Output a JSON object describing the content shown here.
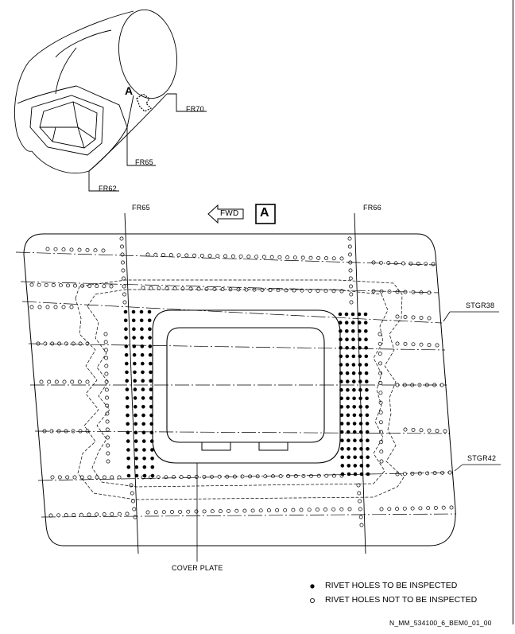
{
  "view_label": "A",
  "labels": {
    "fr70": "FR70",
    "fr65_top": "FR65",
    "fr62": "FR62",
    "fr65": "FR65",
    "fr66": "FR66",
    "fwd": "FWD",
    "view_box": "A",
    "stgr38": "STGR38",
    "stgr42": "STGR42",
    "cover_plate": "COVER PLATE"
  },
  "legend": {
    "filled": "RIVET HOLES TO BE INSPECTED",
    "open": "RIVET HOLES NOT TO BE INSPECTED"
  },
  "drawing_ref": "N_MM_534100_6_BEM0_01_00",
  "icons": {
    "filled_dot": "filled-circle-icon",
    "open_dot": "open-circle-icon",
    "fwd_arrow": "fwd-arrow-icon",
    "view_arrow": "view-direction-arrow-icon"
  }
}
